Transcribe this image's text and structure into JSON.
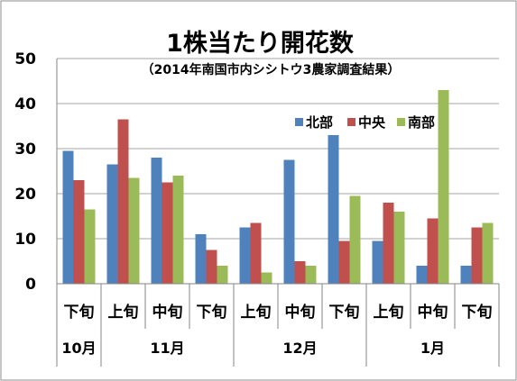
{
  "chart_data": {
    "type": "bar",
    "title": "1株当たり開花数",
    "subtitle": "（2014年南国市内シシトウ3農家調査結果）",
    "categories": [
      "下旬",
      "上旬",
      "中旬",
      "下旬",
      "上旬",
      "中旬",
      "下旬",
      "上旬",
      "中旬",
      "下旬"
    ],
    "months": [
      {
        "label": "10月",
        "span": [
          0,
          0
        ]
      },
      {
        "label": "11月",
        "span": [
          1,
          3
        ]
      },
      {
        "label": "12月",
        "span": [
          4,
          6
        ]
      },
      {
        "label": "1月",
        "span": [
          7,
          9
        ]
      }
    ],
    "series": [
      {
        "name": "北部",
        "color": "#4F81BD",
        "values": [
          29.5,
          26.5,
          28,
          11,
          12.5,
          27.5,
          33,
          9.5,
          4,
          4
        ]
      },
      {
        "name": "中央",
        "color": "#C0504D",
        "values": [
          23,
          36.5,
          22.5,
          7.5,
          13.5,
          5,
          9.5,
          18,
          14.5,
          12.5
        ]
      },
      {
        "name": "南部",
        "color": "#9BBB59",
        "values": [
          16.5,
          23.5,
          24,
          4,
          2.5,
          4,
          19.5,
          16,
          43,
          13.5
        ]
      }
    ],
    "ylim": [
      0,
      50
    ],
    "yticks": [
      "0",
      "10",
      "20",
      "30",
      "40",
      "50"
    ],
    "xlabel": "",
    "ylabel": "",
    "grid": true,
    "legend_position": "top-right"
  }
}
